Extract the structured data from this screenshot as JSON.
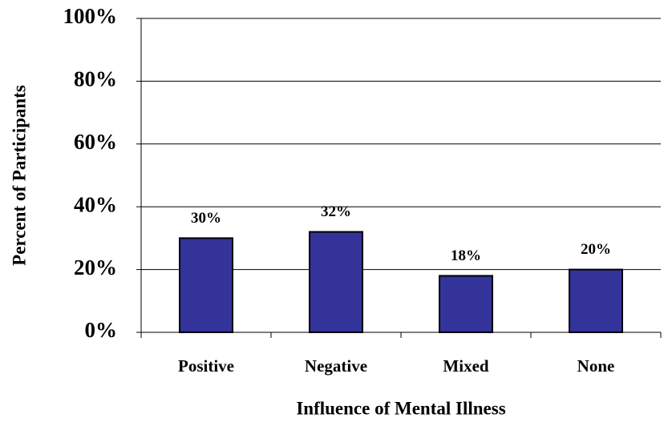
{
  "chart_data": {
    "type": "bar",
    "x_label": "Influence of Mental Illness",
    "y_label": "Percent of Participants",
    "categories": [
      "Positive",
      "Negative",
      "Mixed",
      "None"
    ],
    "values": [
      30,
      32,
      18,
      20
    ],
    "value_labels": [
      "30%",
      "32%",
      "18%",
      "20%"
    ],
    "color": "#333399",
    "ylim": [
      0,
      100
    ],
    "yticks": [
      {
        "value": 0,
        "label": "0%"
      },
      {
        "value": 20,
        "label": "20%"
      },
      {
        "value": 40,
        "label": "40%"
      },
      {
        "value": 60,
        "label": "60%"
      },
      {
        "value": 80,
        "label": "80%"
      },
      {
        "value": 100,
        "label": "100%"
      }
    ],
    "grid": true
  }
}
